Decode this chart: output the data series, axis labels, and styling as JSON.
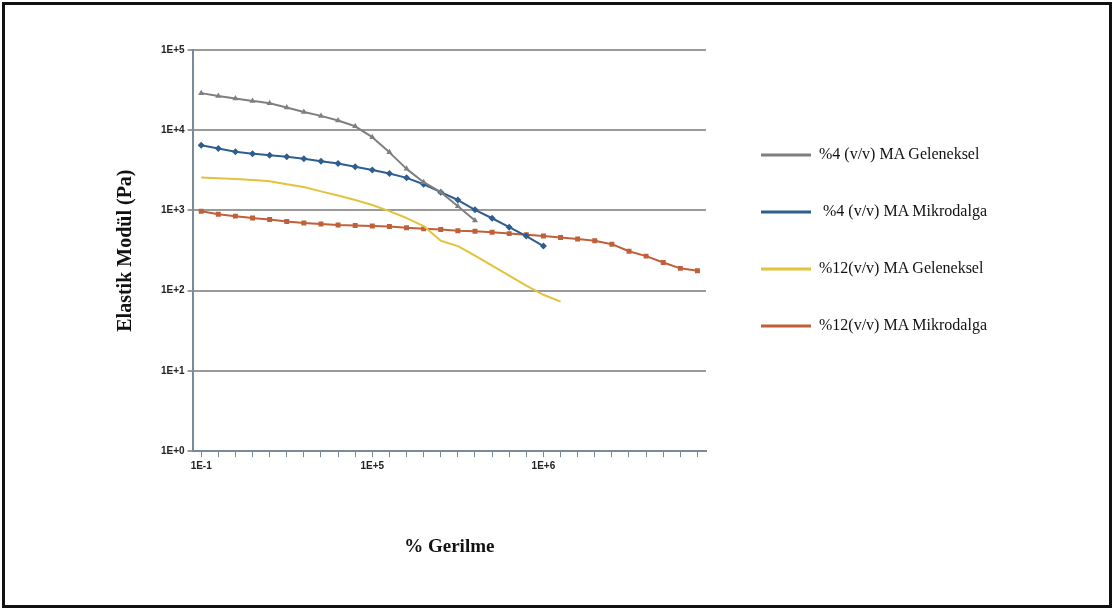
{
  "chart_data": {
    "type": "line",
    "xlabel": "% Gerilme",
    "ylabel": "Elastik Modül (Pa)",
    "categories": [
      "1E-1",
      null,
      null,
      null,
      null,
      null,
      null,
      null,
      null,
      null,
      "1E+5",
      null,
      null,
      null,
      null,
      null,
      null,
      null,
      null,
      null,
      "1E+6",
      null,
      null,
      null,
      null,
      null,
      null,
      null,
      null,
      null
    ],
    "log": "y",
    "ylim": [
      1,
      100000
    ],
    "yticks": [
      {
        "value": 1,
        "label": "1E+0"
      },
      {
        "value": 10,
        "label": "1E+1"
      },
      {
        "value": 100,
        "label": "1E+2"
      },
      {
        "value": 1000,
        "label": "1E+3"
      },
      {
        "value": 10000,
        "label": "1E+4"
      },
      {
        "value": 100000,
        "label": "1E+5"
      }
    ],
    "grid": "y",
    "legend": "right",
    "line_style": "solid",
    "series": [
      {
        "name": "%4 (v/v) MA Geleneksel",
        "color": "#7f7f7f",
        "marker": "triangle",
        "values": [
          29000,
          26700,
          24900,
          23200,
          21700,
          19200,
          16900,
          15100,
          13200,
          11200,
          8200,
          5300,
          3300,
          2250,
          1690,
          1130,
          750,
          null,
          null,
          null,
          null,
          null,
          null,
          null,
          null,
          null,
          null,
          null,
          null,
          null
        ]
      },
      {
        "name": " %4 (v/v) MA Mikrodalga",
        "color": "#2e5e8e",
        "marker": "diamond",
        "values": [
          6490,
          5920,
          5400,
          5100,
          4880,
          4660,
          4400,
          4110,
          3840,
          3500,
          3200,
          2890,
          2550,
          2120,
          1690,
          1350,
          1020,
          800,
          620,
          480,
          360,
          null,
          null,
          null,
          null,
          null,
          null,
          null,
          null,
          null
        ]
      },
      {
        "name": "%12(v/v) MA Geleneksel",
        "color": "#e3c23c",
        "marker": "none",
        "values": [
          2580,
          2520,
          2460,
          2400,
          2320,
          2120,
          1960,
          1730,
          1540,
          1350,
          1170,
          980,
          805,
          640,
          420,
          360,
          273,
          205,
          154,
          116,
          89,
          73,
          null,
          null,
          null,
          null,
          null,
          null,
          null,
          null
        ]
      },
      {
        "name": "%12(v/v) MA Mikrodalga",
        "color": "#c0603a",
        "marker": "square",
        "values": [
          980,
          900,
          850,
          805,
          770,
          730,
          700,
          680,
          660,
          650,
          640,
          630,
          610,
          590,
          580,
          560,
          550,
          535,
          515,
          500,
          480,
          460,
          440,
          420,
          380,
          310,
          270,
          225,
          190,
          177
        ]
      }
    ]
  }
}
